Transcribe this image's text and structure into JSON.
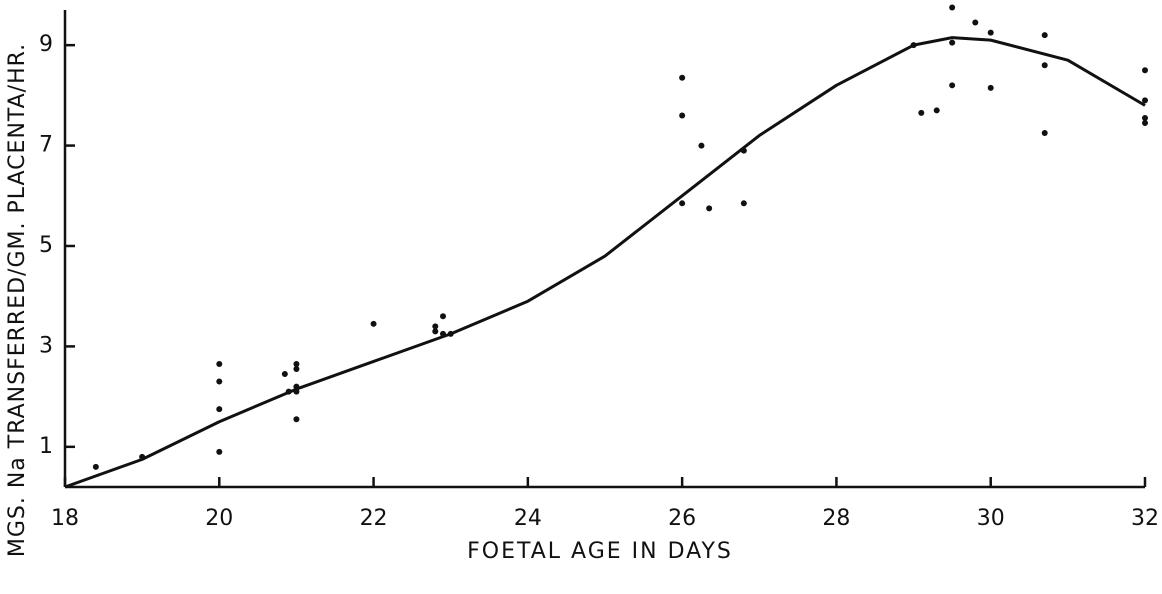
{
  "chart_data": {
    "type": "scatter",
    "xlabel": "FOETAL AGE IN DAYS",
    "ylabel": "MGS. Na TRANSFERRED/GM. PLACENTA/HR.",
    "xlim": [
      18,
      32
    ],
    "xticks": [
      18,
      20,
      22,
      24,
      26,
      28,
      30,
      32
    ],
    "ylim": [
      0.2,
      9.7
    ],
    "yticks": [
      1,
      3,
      5,
      7,
      9
    ],
    "color": "#111111",
    "x": [
      18.4,
      19.0,
      20.0,
      20.0,
      20.0,
      20.0,
      20.85,
      20.9,
      21.0,
      21.0,
      21.0,
      21.0,
      21.0,
      22.0,
      22.8,
      22.8,
      22.9,
      22.9,
      23.0,
      26.0,
      26.0,
      26.0,
      26.25,
      26.35,
      26.8,
      26.8,
      29.0,
      29.1,
      29.3,
      29.5,
      29.5,
      29.5,
      29.8,
      30.0,
      30.0,
      30.7,
      30.7,
      30.7,
      32.0,
      32.0,
      32.0,
      32.0
    ],
    "y": [
      0.6,
      0.8,
      2.65,
      2.3,
      1.75,
      0.9,
      2.45,
      2.1,
      2.65,
      2.55,
      2.2,
      2.1,
      1.55,
      3.45,
      3.4,
      3.3,
      3.6,
      3.25,
      3.25,
      8.35,
      7.6,
      5.85,
      7.0,
      5.75,
      6.9,
      5.85,
      9.0,
      7.65,
      7.7,
      9.75,
      9.05,
      8.2,
      9.45,
      9.25,
      8.15,
      9.2,
      8.6,
      7.25,
      8.5,
      7.9,
      7.55,
      7.45
    ],
    "fit": {
      "x": [
        18,
        19,
        20,
        21,
        22,
        23,
        24,
        25,
        26,
        27,
        28,
        29,
        29.5,
        30,
        31,
        32
      ],
      "y": [
        0.2,
        0.75,
        1.5,
        2.15,
        2.7,
        3.25,
        3.9,
        4.8,
        6.0,
        7.2,
        8.2,
        9.0,
        9.15,
        9.1,
        8.7,
        7.8
      ]
    }
  }
}
